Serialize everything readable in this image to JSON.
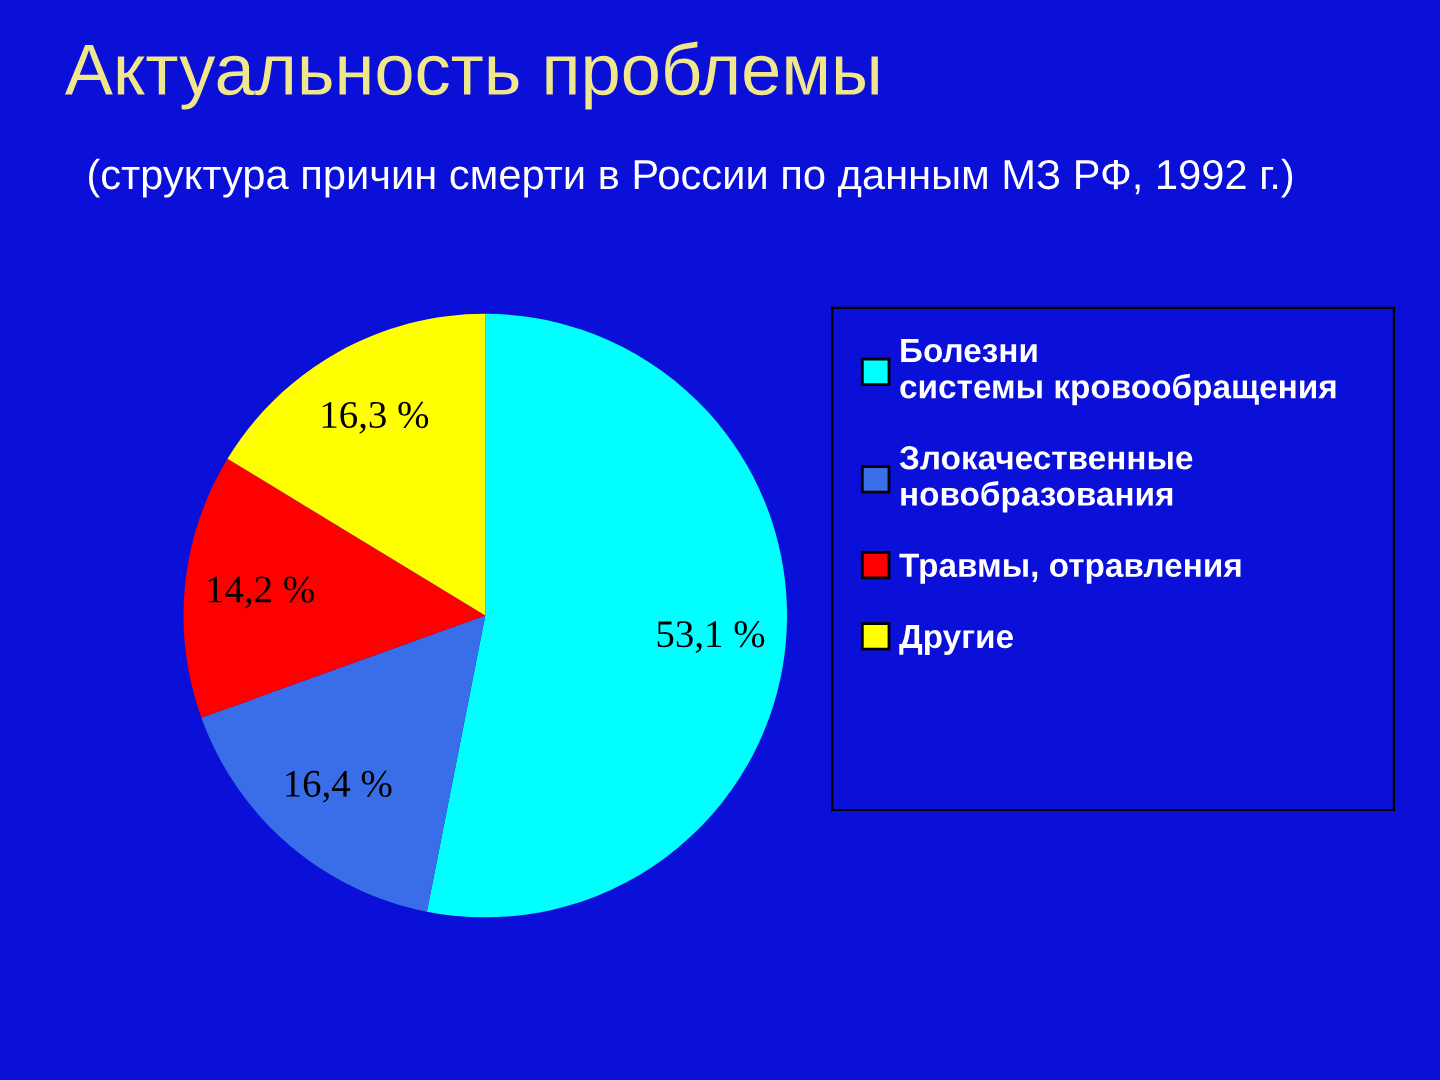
{
  "chart_data": {
    "type": "pie",
    "title": "Актуальность проблемы",
    "subtitle": "(структура причин смерти в России по данным МЗ РФ, 1992 г.)",
    "categories": [
      "Болезни системы кровообращения",
      "Злокачественные новобразования",
      "Травмы, отравления",
      "Другие"
    ],
    "values": [
      53.1,
      16.4,
      14.2,
      16.3
    ],
    "value_labels": [
      "53,1 %",
      "16,4 %",
      "14,2 %",
      "16,3 %"
    ],
    "colors": [
      "#00ffff",
      "#3a6ee8",
      "#ff0000",
      "#ffff00"
    ],
    "legend": "right"
  }
}
